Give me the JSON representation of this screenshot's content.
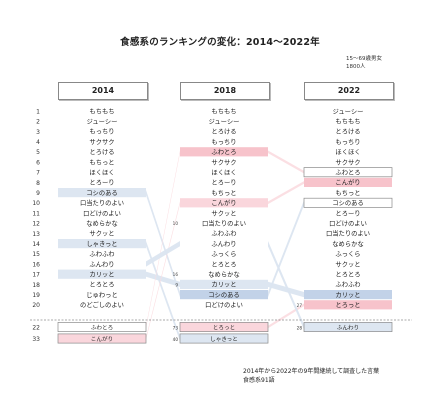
{
  "title": "食感系のランキングの変化：2014〜2022年",
  "note_lines": [
    "15～69歳男女",
    "1800人"
  ],
  "footnote_lines": [
    "2014年から2022年の9年間継続して調査した言葉",
    "食感系91語"
  ],
  "colors": {
    "blue_light": "#dde6f1",
    "blue_mid": "#c2d2e8",
    "pink": "#fad6dc",
    "pink_mid": "#f7c3cb",
    "link_blue": "#dbe5f0",
    "link_pink": "#fbdde2",
    "box_border": "#8a8a8a",
    "separator": "#555555"
  },
  "chart_data": {
    "type": "table",
    "years": [
      "2014",
      "2018",
      "2022"
    ],
    "ranks": [
      "1",
      "2",
      "3",
      "4",
      "5",
      "6",
      "7",
      "8",
      "9",
      "10",
      "11",
      "12",
      "13",
      "14",
      "15",
      "16",
      "17",
      "18",
      "19",
      "20"
    ],
    "columns": [
      {
        "year": "2014",
        "items": [
          {
            "rank": 1,
            "word": "もちもち"
          },
          {
            "rank": 2,
            "word": "ジューシー"
          },
          {
            "rank": 3,
            "word": "もっちり"
          },
          {
            "rank": 4,
            "word": "サクサク"
          },
          {
            "rank": 5,
            "word": "とろける"
          },
          {
            "rank": 6,
            "word": "もちっと"
          },
          {
            "rank": 7,
            "word": "ほくほく"
          },
          {
            "rank": 8,
            "word": "とろーり"
          },
          {
            "rank": 9,
            "word": "コシのある",
            "highlight": "blue"
          },
          {
            "rank": 10,
            "word": "口当たりのよい"
          },
          {
            "rank": 11,
            "word": "口どけのよい"
          },
          {
            "rank": 12,
            "word": "なめらかな"
          },
          {
            "rank": 13,
            "word": "サクッと"
          },
          {
            "rank": 14,
            "word": "しゃきっと",
            "highlight": "blue"
          },
          {
            "rank": 15,
            "word": "ふわふわ"
          },
          {
            "rank": 16,
            "word": "ふんわり"
          },
          {
            "rank": 17,
            "word": "カリッと",
            "highlight": "blue"
          },
          {
            "rank": 18,
            "word": "とろとろ"
          },
          {
            "rank": 19,
            "word": "じゅわっと"
          },
          {
            "rank": 20,
            "word": "のどごしのよい"
          }
        ],
        "extras": [
          {
            "rank": 22,
            "word": "ふわとろ",
            "highlight": "outline"
          },
          {
            "rank": 33,
            "word": "こんがり",
            "highlight": "pink"
          }
        ]
      },
      {
        "year": "2018",
        "items": [
          {
            "rank": 1,
            "word": "もちもち"
          },
          {
            "rank": 2,
            "word": "ジューシー"
          },
          {
            "rank": 3,
            "word": "とろける"
          },
          {
            "rank": 4,
            "word": "もっちり"
          },
          {
            "rank": 5,
            "word": "ふわとろ",
            "highlight": "pink_strong"
          },
          {
            "rank": 6,
            "word": "サクサク"
          },
          {
            "rank": 7,
            "word": "ほくほく"
          },
          {
            "rank": 8,
            "word": "とろーり"
          },
          {
            "rank": 9,
            "word": "もちっと"
          },
          {
            "rank": 10,
            "word": "こんがり",
            "highlight": "pink"
          },
          {
            "rank": 11,
            "word": "サクッと"
          },
          {
            "rank": 12,
            "word": "口当たりのよい"
          },
          {
            "rank": 13,
            "word": "ふわふわ"
          },
          {
            "rank": 14,
            "word": "ふんわり"
          },
          {
            "rank": 15,
            "word": "ふっくら"
          },
          {
            "rank": 16,
            "word": "とろとろ"
          },
          {
            "rank": 17,
            "word": "なめらかな"
          },
          {
            "rank": 18,
            "word": "カリッと",
            "highlight": "blue"
          },
          {
            "rank": 19,
            "word": "コシのある",
            "highlight": "blue_strong"
          },
          {
            "rank": 20,
            "word": "口どけのよい"
          }
        ],
        "small_prev_ranks": [
          {
            "at_rank": 12,
            "label": "10"
          },
          {
            "at_rank": 17,
            "label": "16"
          },
          {
            "at_rank": 18,
            "label": "9"
          }
        ],
        "extras": [
          {
            "rank": 73,
            "word": "とろっと",
            "highlight": "pink"
          },
          {
            "rank": 40,
            "word": "しゃきっと",
            "highlight": "blue"
          }
        ]
      },
      {
        "year": "2022",
        "items": [
          {
            "rank": 1,
            "word": "ジューシー"
          },
          {
            "rank": 2,
            "word": "もちもち"
          },
          {
            "rank": 3,
            "word": "とろける"
          },
          {
            "rank": 4,
            "word": "もっちり"
          },
          {
            "rank": 5,
            "word": "ほくほく"
          },
          {
            "rank": 6,
            "word": "サクサク"
          },
          {
            "rank": 7,
            "word": "ふわとろ",
            "highlight": "outline"
          },
          {
            "rank": 8,
            "word": "こんがり",
            "highlight": "pink_strong"
          },
          {
            "rank": 9,
            "word": "もちっと"
          },
          {
            "rank": 10,
            "word": "コシのある",
            "highlight": "outline"
          },
          {
            "rank": 11,
            "word": "とろーり"
          },
          {
            "rank": 12,
            "word": "口どけのよい"
          },
          {
            "rank": 13,
            "word": "口当たりのよい"
          },
          {
            "rank": 14,
            "word": "なめらかな"
          },
          {
            "rank": 15,
            "word": "ふっくら"
          },
          {
            "rank": 16,
            "word": "サクッと"
          },
          {
            "rank": 17,
            "word": "とろとろ"
          },
          {
            "rank": 18,
            "word": "ふわふわ"
          },
          {
            "rank": 19,
            "word": "カリッと",
            "highlight": "blue_strong"
          },
          {
            "rank": 20,
            "word": "とろっと",
            "highlight": "pink_strong"
          }
        ],
        "small_prev_ranks": [
          {
            "at_rank": 20,
            "label": "27"
          }
        ],
        "extras": [
          {
            "rank": 28,
            "word": "ふんわり",
            "highlight": "blue"
          }
        ]
      }
    ]
  }
}
